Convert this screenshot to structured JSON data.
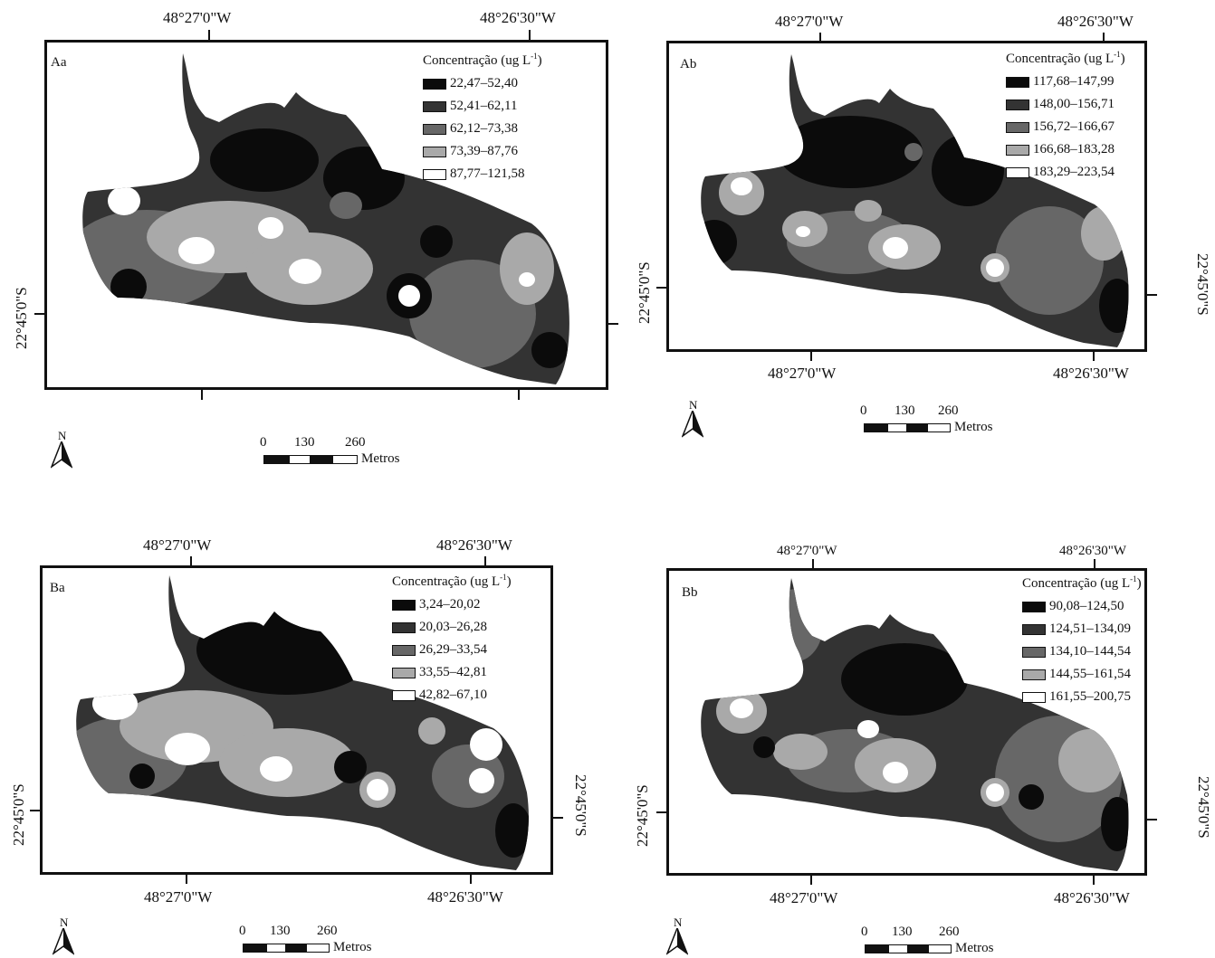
{
  "legend_title_main": "Concentração (ug L",
  "legend_title_sup": "-1",
  "legend_title_end": ")",
  "lon_left": "48°27'0\"W",
  "lon_right": "48°26'30\"W",
  "lat": "22°45'0\"S",
  "north": "N",
  "scale": {
    "n0": "0",
    "n1": "130",
    "n2": "260",
    "unit": "Metros"
  },
  "panels": [
    {
      "id": "Aa",
      "classes": [
        "22,47–52,40",
        "52,41–62,11",
        "62,12–73,38",
        "73,39–87,76",
        "87,77–121,58"
      ]
    },
    {
      "id": "Ab",
      "classes": [
        "117,68–147,99",
        "148,00–156,71",
        "156,72–166,67",
        "166,68–183,28",
        "183,29–223,54"
      ]
    },
    {
      "id": "Ba",
      "classes": [
        "3,24–20,02",
        "20,03–26,28",
        "26,29–33,54",
        "33,55–42,81",
        "42,82–67,10"
      ]
    },
    {
      "id": "Bb",
      "classes": [
        "90,08–124,50",
        "124,51–134,09",
        "134,10–144,54",
        "144,55–161,54",
        "161,55–200,75"
      ]
    }
  ],
  "class_colors": [
    "#0b0b0b",
    "#333333",
    "#676767",
    "#a9a9a9",
    "#ffffff"
  ]
}
